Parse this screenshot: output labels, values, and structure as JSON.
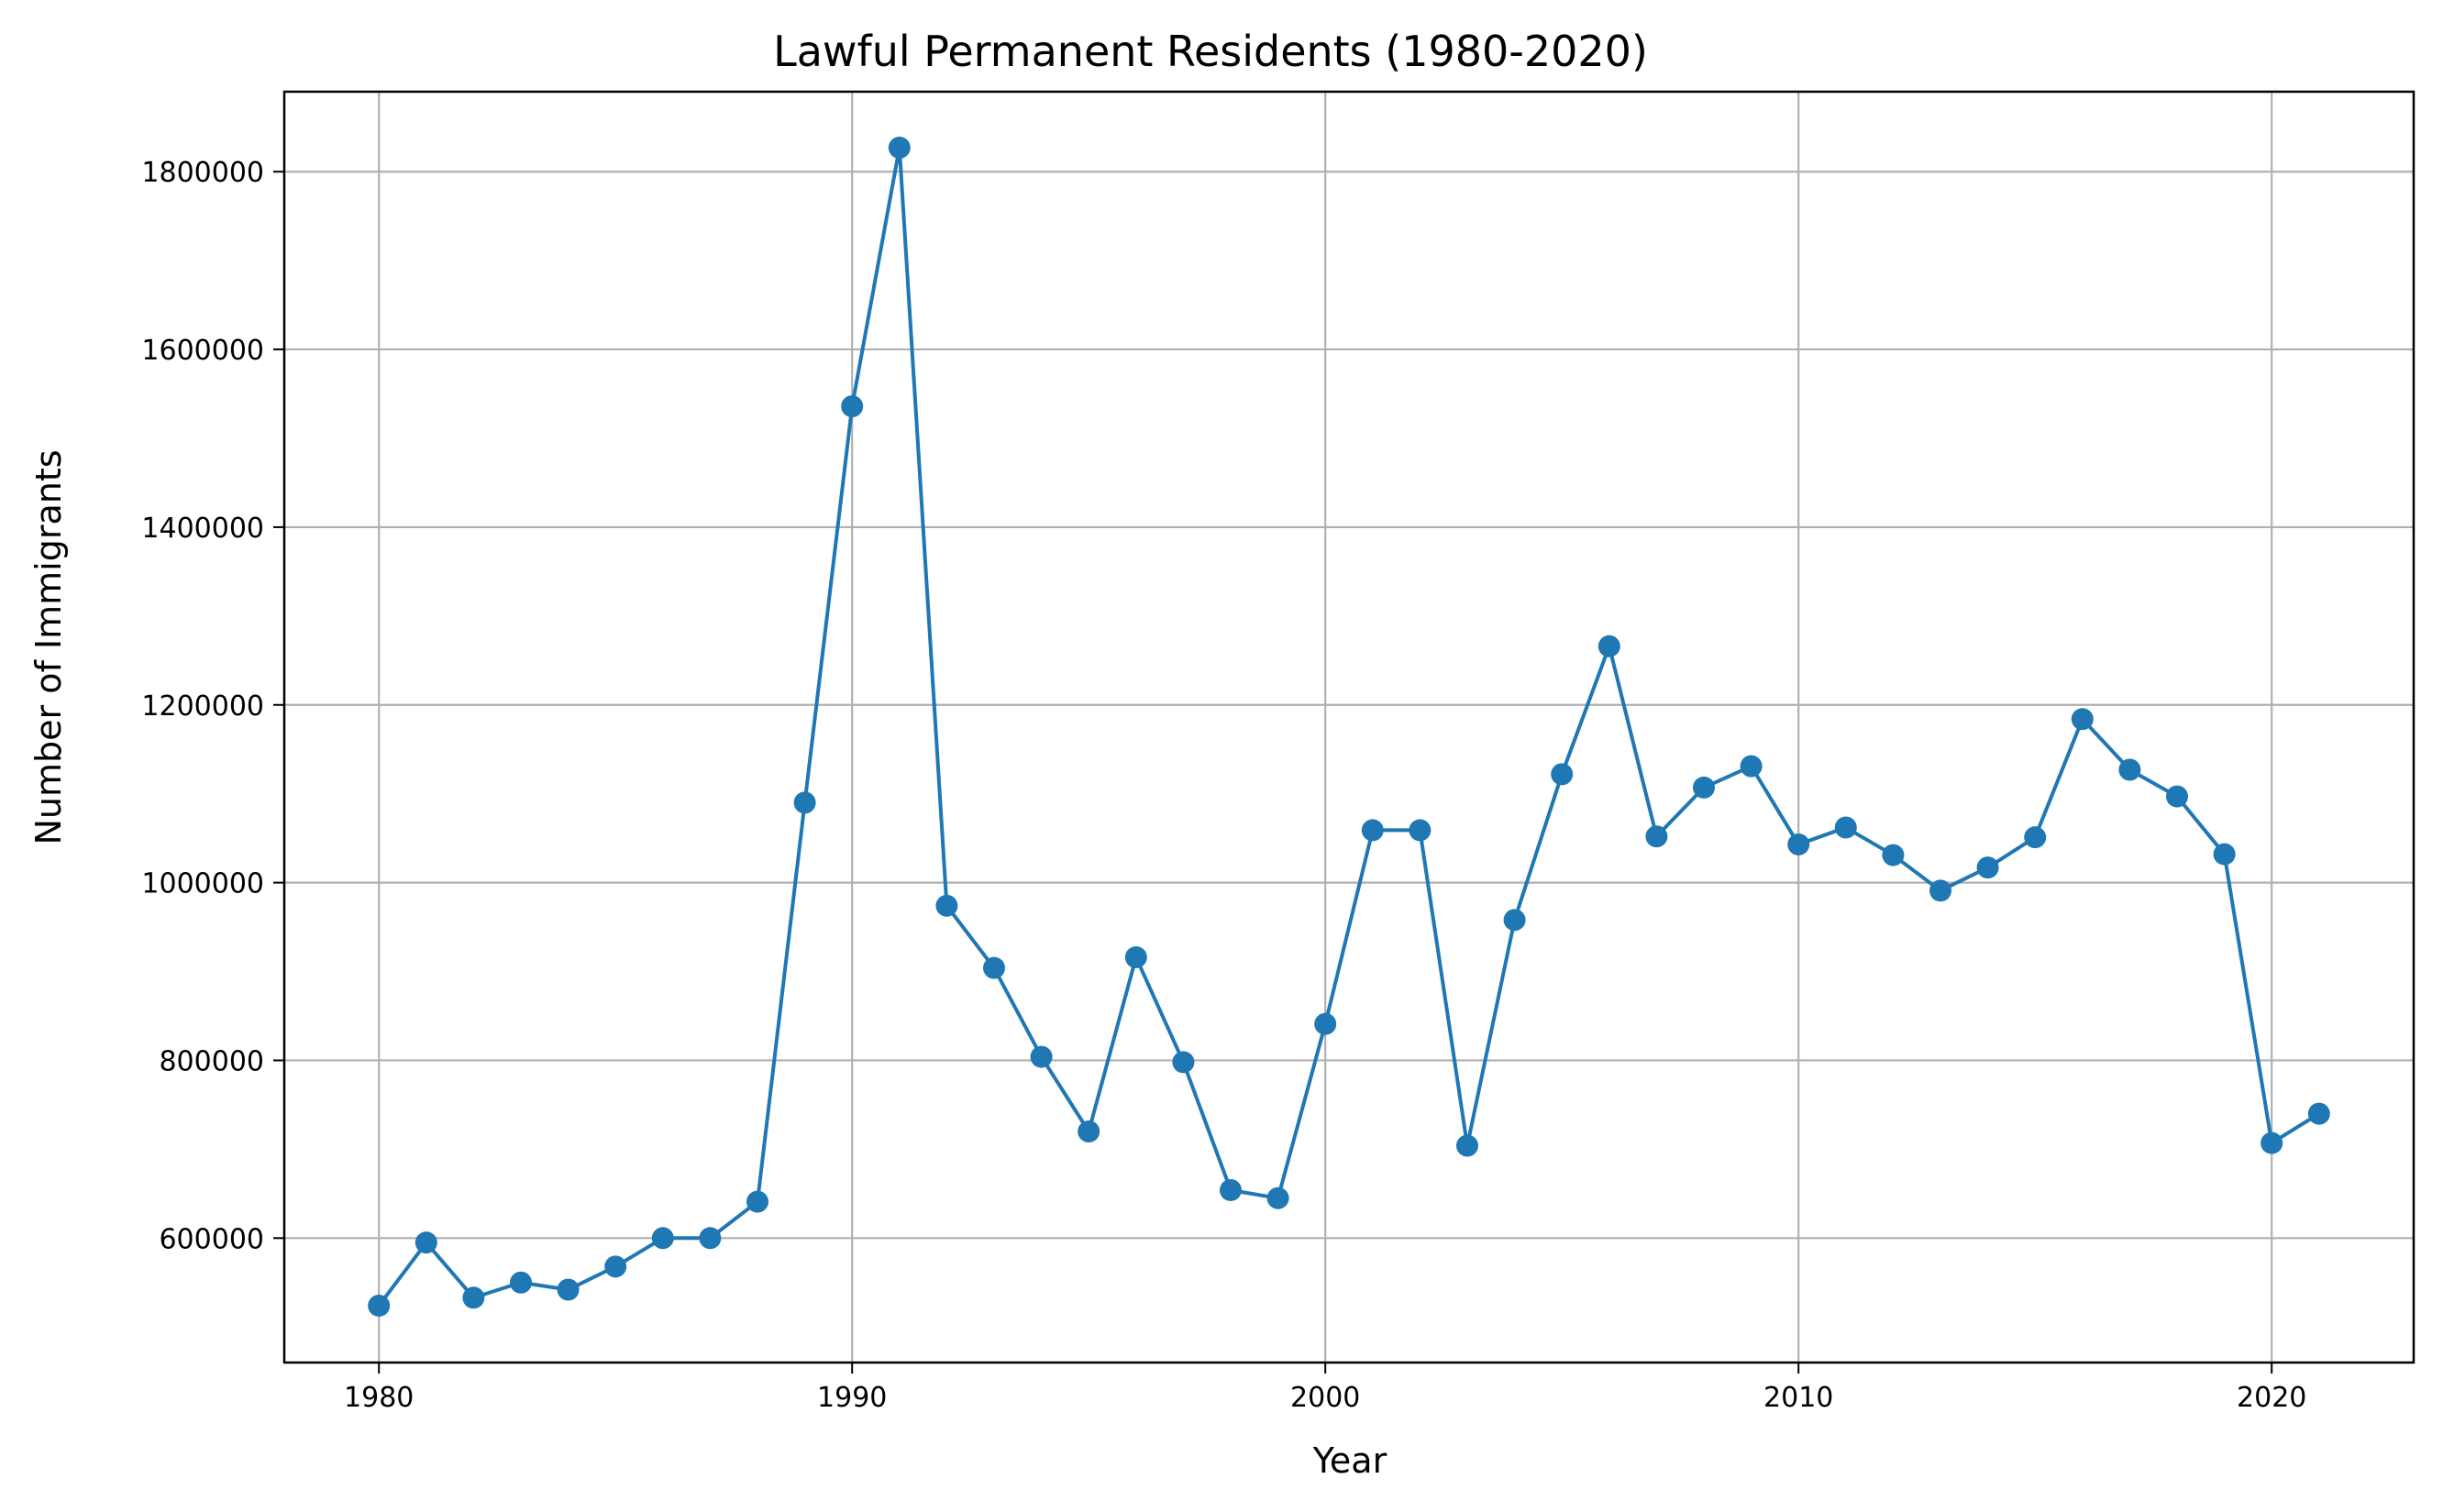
{
  "chart_data": {
    "type": "line",
    "title": "Lawful Permanent Residents (1980-2020)",
    "xlabel": "Year",
    "ylabel": "Number of Immigrants",
    "xlim": [
      1978,
      2023
    ],
    "ylim": [
      460000,
      1890000
    ],
    "xticks": [
      1980,
      1990,
      2000,
      2010,
      2020
    ],
    "yticks": [
      600000,
      800000,
      1000000,
      1200000,
      1400000,
      1600000,
      1800000
    ],
    "grid": true,
    "color": "#1f77b4",
    "marker": "circle",
    "series": [
      {
        "x": [
          1980,
          1981,
          1982,
          1983,
          1984,
          1985,
          1986,
          1987,
          1988,
          1989,
          1990,
          1991,
          1992,
          1993,
          1994,
          1995,
          1996,
          1997,
          1998,
          1999,
          2000,
          2001,
          2002,
          2003,
          2004,
          2005,
          2006,
          2007,
          2008,
          2009,
          2010,
          2011,
          2012,
          2013,
          2014,
          2015,
          2016,
          2017,
          2018,
          2019,
          2020,
          2021
        ],
        "y": [
          524000,
          595000,
          533000,
          550000,
          542000,
          568000,
          600000,
          600000,
          641000,
          1090000,
          1536000,
          1827000,
          974000,
          904000,
          804000,
          720000,
          916000,
          798000,
          654000,
          645000,
          841000,
          1059000,
          1059000,
          704000,
          958000,
          1122000,
          1266000,
          1052000,
          1107000,
          1131000,
          1043000,
          1062000,
          1031000,
          991000,
          1017000,
          1051000,
          1184000,
          1127000,
          1097000,
          1032000,
          707000,
          740000
        ]
      }
    ]
  }
}
